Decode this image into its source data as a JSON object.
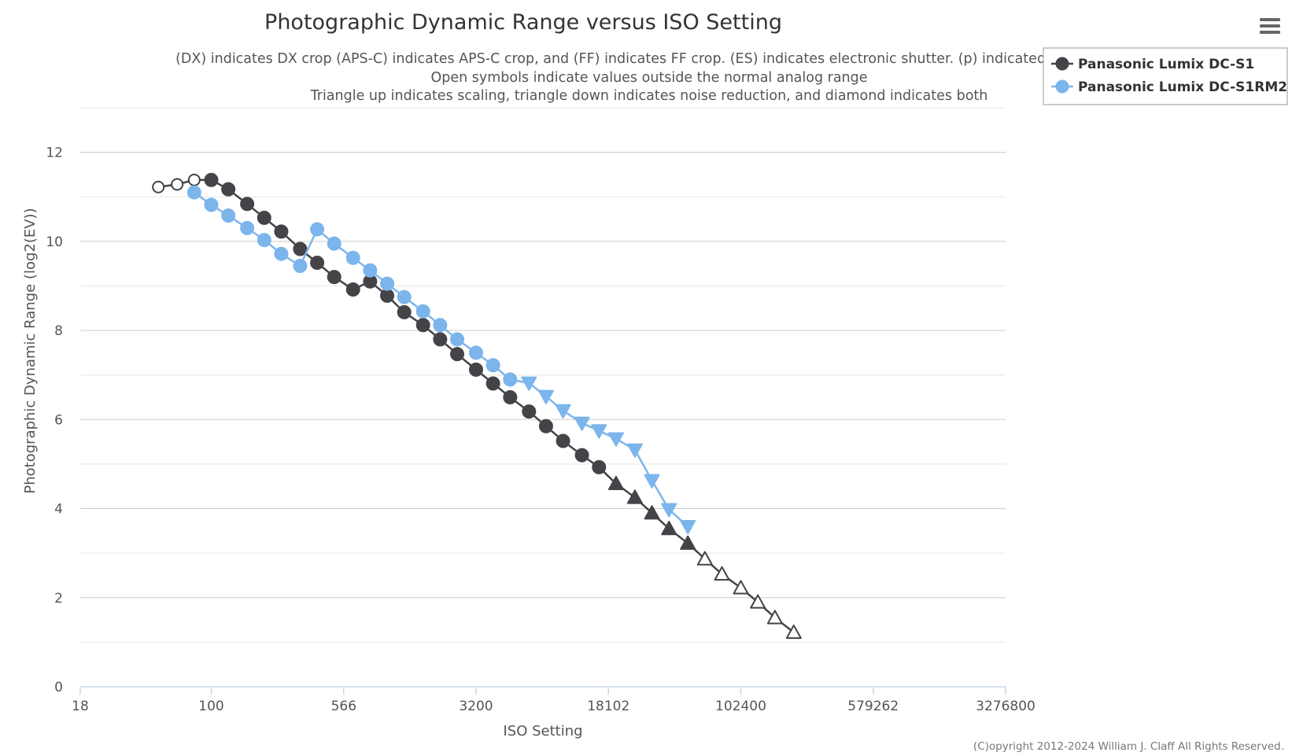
{
  "chart_data": {
    "type": "line",
    "title": "Photographic Dynamic Range versus ISO Setting",
    "subtitle_lines": [
      "(DX) indicates DX crop (APS-C) indicates APS-C crop, and (FF) indicates FF crop. (ES) indicates electronic shutter. (p) indicated pr",
      "Open symbols indicate values outside the normal analog range",
      "Triangle up indicates scaling, triangle down indicates noise reduction, and diamond indicates both"
    ],
    "xlabel": "ISO Setting",
    "ylabel": "Photographic Dynamic Range (log2(EV))",
    "x_scale": "log2",
    "xlim": [
      18,
      3276800
    ],
    "x_ticks": [
      "18",
      "100",
      "566",
      "3200",
      "18102",
      "102400",
      "579262",
      "3276800"
    ],
    "ylim": [
      0,
      13
    ],
    "y_ticks": [
      "0",
      "2",
      "4",
      "6",
      "8",
      "10",
      "12"
    ],
    "grid": true,
    "legend_position": "top-right",
    "credit": "(C)opyright 2012-2024 William J. Claff All Rights Reserved.",
    "series": [
      {
        "name": "Panasonic Lumix DC-S1",
        "color": "#434348",
        "points": [
          {
            "x": 50,
            "y": 11.22,
            "marker": "circle",
            "open": true
          },
          {
            "x": 64,
            "y": 11.28,
            "marker": "circle",
            "open": true
          },
          {
            "x": 80,
            "y": 11.38,
            "marker": "circle",
            "open": true
          },
          {
            "x": 100,
            "y": 11.38,
            "marker": "circle",
            "open": false
          },
          {
            "x": 125,
            "y": 11.17,
            "marker": "circle",
            "open": false
          },
          {
            "x": 160,
            "y": 10.84,
            "marker": "circle",
            "open": false
          },
          {
            "x": 200,
            "y": 10.53,
            "marker": "circle",
            "open": false
          },
          {
            "x": 250,
            "y": 10.22,
            "marker": "circle",
            "open": false
          },
          {
            "x": 320,
            "y": 9.83,
            "marker": "circle",
            "open": false
          },
          {
            "x": 400,
            "y": 9.52,
            "marker": "circle",
            "open": false
          },
          {
            "x": 500,
            "y": 9.2,
            "marker": "circle",
            "open": false
          },
          {
            "x": 640,
            "y": 8.92,
            "marker": "circle",
            "open": false
          },
          {
            "x": 800,
            "y": 9.1,
            "marker": "circle",
            "open": false
          },
          {
            "x": 1000,
            "y": 8.78,
            "marker": "circle",
            "open": false
          },
          {
            "x": 1250,
            "y": 8.41,
            "marker": "circle",
            "open": false
          },
          {
            "x": 1600,
            "y": 8.12,
            "marker": "circle",
            "open": false
          },
          {
            "x": 2000,
            "y": 7.8,
            "marker": "circle",
            "open": false
          },
          {
            "x": 2500,
            "y": 7.47,
            "marker": "circle",
            "open": false
          },
          {
            "x": 3200,
            "y": 7.12,
            "marker": "circle",
            "open": false
          },
          {
            "x": 4000,
            "y": 6.81,
            "marker": "circle",
            "open": false
          },
          {
            "x": 5000,
            "y": 6.5,
            "marker": "circle",
            "open": false
          },
          {
            "x": 6400,
            "y": 6.18,
            "marker": "circle",
            "open": false
          },
          {
            "x": 8000,
            "y": 5.85,
            "marker": "circle",
            "open": false
          },
          {
            "x": 10000,
            "y": 5.52,
            "marker": "circle",
            "open": false
          },
          {
            "x": 12800,
            "y": 5.2,
            "marker": "circle",
            "open": false
          },
          {
            "x": 16000,
            "y": 4.93,
            "marker": "circle",
            "open": false
          },
          {
            "x": 20000,
            "y": 4.56,
            "marker": "triangle-up",
            "open": false
          },
          {
            "x": 25600,
            "y": 4.25,
            "marker": "triangle-up",
            "open": false
          },
          {
            "x": 32000,
            "y": 3.9,
            "marker": "triangle-up",
            "open": false
          },
          {
            "x": 40000,
            "y": 3.55,
            "marker": "triangle-up",
            "open": false
          },
          {
            "x": 51200,
            "y": 3.22,
            "marker": "triangle-up",
            "open": false
          },
          {
            "x": 64000,
            "y": 2.87,
            "marker": "triangle-up",
            "open": true
          },
          {
            "x": 80000,
            "y": 2.53,
            "marker": "triangle-up",
            "open": true
          },
          {
            "x": 102400,
            "y": 2.22,
            "marker": "triangle-up",
            "open": true
          },
          {
            "x": 128000,
            "y": 1.9,
            "marker": "triangle-up",
            "open": true
          },
          {
            "x": 160000,
            "y": 1.55,
            "marker": "triangle-up",
            "open": true
          },
          {
            "x": 204800,
            "y": 1.22,
            "marker": "triangle-up",
            "open": true
          }
        ]
      },
      {
        "name": "Panasonic Lumix DC-S1RM2",
        "color": "#7cb5ec",
        "points": [
          {
            "x": 80,
            "y": 11.1,
            "marker": "circle",
            "open": false
          },
          {
            "x": 100,
            "y": 10.82,
            "marker": "circle",
            "open": false
          },
          {
            "x": 125,
            "y": 10.58,
            "marker": "circle",
            "open": false
          },
          {
            "x": 160,
            "y": 10.3,
            "marker": "circle",
            "open": false
          },
          {
            "x": 200,
            "y": 10.03,
            "marker": "circle",
            "open": false
          },
          {
            "x": 250,
            "y": 9.72,
            "marker": "circle",
            "open": false
          },
          {
            "x": 320,
            "y": 9.45,
            "marker": "circle",
            "open": false
          },
          {
            "x": 400,
            "y": 10.27,
            "marker": "circle",
            "open": false
          },
          {
            "x": 500,
            "y": 9.95,
            "marker": "circle",
            "open": false
          },
          {
            "x": 640,
            "y": 9.63,
            "marker": "circle",
            "open": false
          },
          {
            "x": 800,
            "y": 9.35,
            "marker": "circle",
            "open": false
          },
          {
            "x": 1000,
            "y": 9.05,
            "marker": "circle",
            "open": false
          },
          {
            "x": 1250,
            "y": 8.75,
            "marker": "circle",
            "open": false
          },
          {
            "x": 1600,
            "y": 8.43,
            "marker": "circle",
            "open": false
          },
          {
            "x": 2000,
            "y": 8.12,
            "marker": "circle",
            "open": false
          },
          {
            "x": 2500,
            "y": 7.8,
            "marker": "circle",
            "open": false
          },
          {
            "x": 3200,
            "y": 7.5,
            "marker": "circle",
            "open": false
          },
          {
            "x": 4000,
            "y": 7.22,
            "marker": "circle",
            "open": false
          },
          {
            "x": 5000,
            "y": 6.9,
            "marker": "circle",
            "open": false
          },
          {
            "x": 6400,
            "y": 6.82,
            "marker": "triangle-down",
            "open": false
          },
          {
            "x": 8000,
            "y": 6.52,
            "marker": "triangle-down",
            "open": false
          },
          {
            "x": 10000,
            "y": 6.2,
            "marker": "triangle-down",
            "open": false
          },
          {
            "x": 12800,
            "y": 5.92,
            "marker": "triangle-down",
            "open": false
          },
          {
            "x": 16000,
            "y": 5.75,
            "marker": "triangle-down",
            "open": false
          },
          {
            "x": 20000,
            "y": 5.57,
            "marker": "triangle-down",
            "open": false
          },
          {
            "x": 25600,
            "y": 5.32,
            "marker": "triangle-down",
            "open": false
          },
          {
            "x": 32000,
            "y": 4.63,
            "marker": "triangle-down",
            "open": false
          },
          {
            "x": 40000,
            "y": 3.98,
            "marker": "triangle-down",
            "open": false
          },
          {
            "x": 51200,
            "y": 3.6,
            "marker": "triangle-down",
            "open": false
          }
        ]
      }
    ]
  },
  "menu": {
    "icon": "hamburger-menu-icon"
  }
}
